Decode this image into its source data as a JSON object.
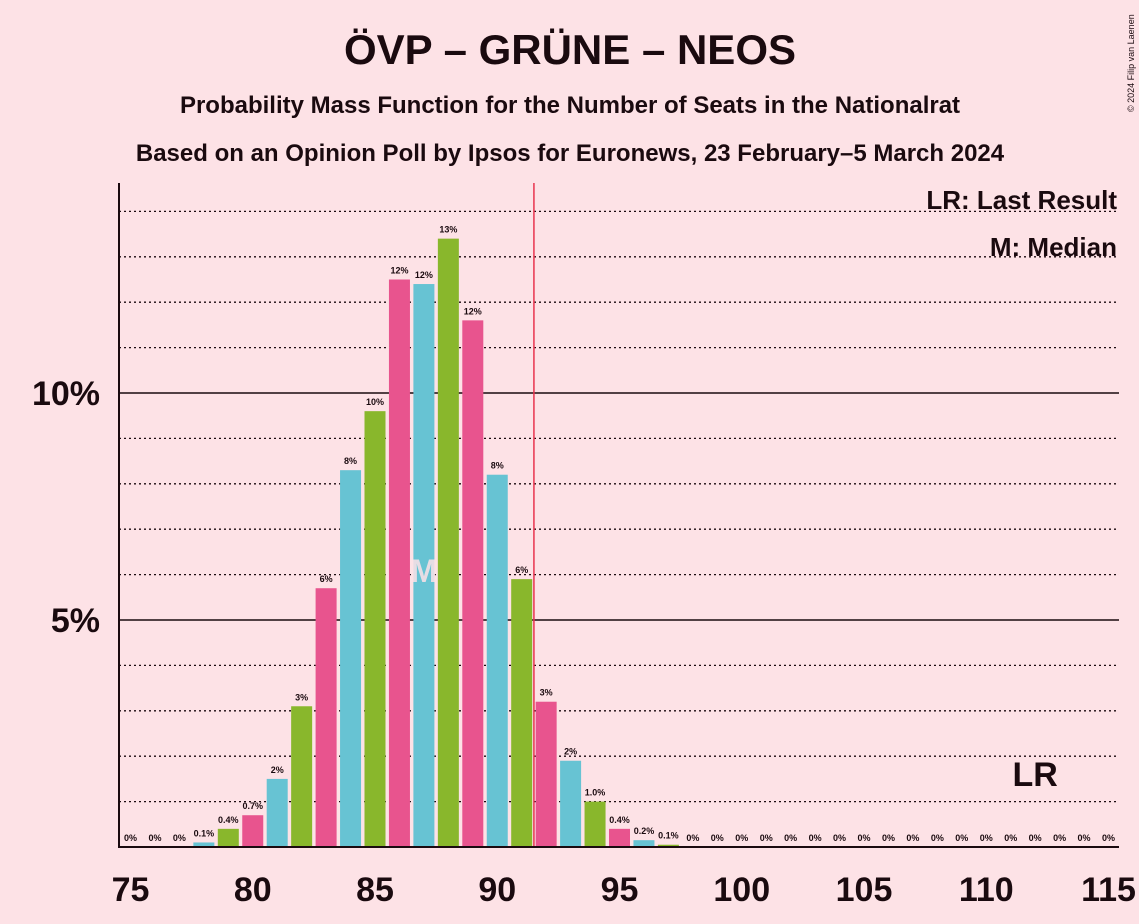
{
  "title": "ÖVP – GRÜNE – NEOS",
  "subtitle": "Probability Mass Function for the Number of Seats in the Nationalrat",
  "subtitle2": "Based on an Opinion Poll by Ipsos for Euronews, 23 February–5 March 2024",
  "copyright": "© 2024 Filip van Laenen",
  "legend": {
    "lr": "LR: Last Result",
    "median": "M: Median"
  },
  "markers": {
    "lr_label": "LR",
    "median_label": "M"
  },
  "colors": {
    "background": "#fde2e6",
    "pink": "#e8548e",
    "cyan": "#67c3d3",
    "green": "#89b72c",
    "majority_line": "#e8344e",
    "axis": "#1a0a0f"
  },
  "chart_data": {
    "type": "bar",
    "x": [
      75,
      76,
      77,
      78,
      79,
      80,
      81,
      82,
      83,
      84,
      85,
      86,
      87,
      88,
      89,
      90,
      91,
      92,
      93,
      94,
      95,
      96,
      97,
      98,
      99,
      100,
      101,
      102,
      103,
      104,
      105,
      106,
      107,
      108,
      109,
      110,
      111,
      112,
      113,
      114,
      115
    ],
    "values": [
      0,
      0,
      0,
      0.1,
      0.4,
      0.7,
      1.5,
      3.1,
      5.7,
      8.3,
      9.6,
      12.5,
      12.4,
      13.4,
      11.6,
      8.2,
      5.9,
      3.2,
      1.9,
      1.0,
      0.4,
      0.15,
      0.05,
      0,
      0,
      0,
      0,
      0,
      0,
      0,
      0,
      0,
      0,
      0,
      0,
      0,
      0,
      0,
      0,
      0,
      0
    ],
    "labels": [
      "0%",
      "0%",
      "0%",
      "0.1%",
      "0.4%",
      "0.7%",
      "2%",
      "3%",
      "6%",
      "8%",
      "10%",
      "12%",
      "12%",
      "13%",
      "12%",
      "8%",
      "6%",
      "3%",
      "2%",
      "1.0%",
      "0.4%",
      "0.2%",
      "0.1%",
      "0%",
      "0%",
      "0%",
      "0%",
      "0%",
      "0%",
      "0%",
      "0%",
      "0%",
      "0%",
      "0%",
      "0%",
      "0%",
      "0%",
      "0%",
      "0%",
      "0%",
      "0%"
    ],
    "colors": [
      "cyan",
      "green",
      "pink",
      "cyan",
      "green",
      "pink",
      "cyan",
      "green",
      "pink",
      "cyan",
      "green",
      "pink",
      "cyan",
      "green",
      "pink",
      "cyan",
      "green",
      "pink",
      "cyan",
      "green",
      "pink",
      "cyan",
      "green",
      "pink",
      "cyan",
      "green",
      "pink",
      "cyan",
      "green",
      "pink",
      "cyan",
      "green",
      "pink",
      "cyan",
      "green",
      "pink",
      "cyan",
      "green",
      "pink",
      "cyan",
      "green"
    ],
    "xticks": [
      75,
      80,
      85,
      90,
      95,
      100,
      105,
      110,
      115
    ],
    "xtick_labels": [
      "75",
      "80",
      "85",
      "90",
      "95",
      "100",
      "105",
      "110",
      "115"
    ],
    "yticks": [
      5,
      10
    ],
    "ytick_labels": [
      "5%",
      "10%"
    ],
    "ylim": [
      0,
      14.6
    ],
    "xlim": [
      75,
      115
    ],
    "minor_grid_step": 1,
    "majority_line_x": 91.5,
    "median_seat": 87,
    "last_result_seat": 112
  }
}
